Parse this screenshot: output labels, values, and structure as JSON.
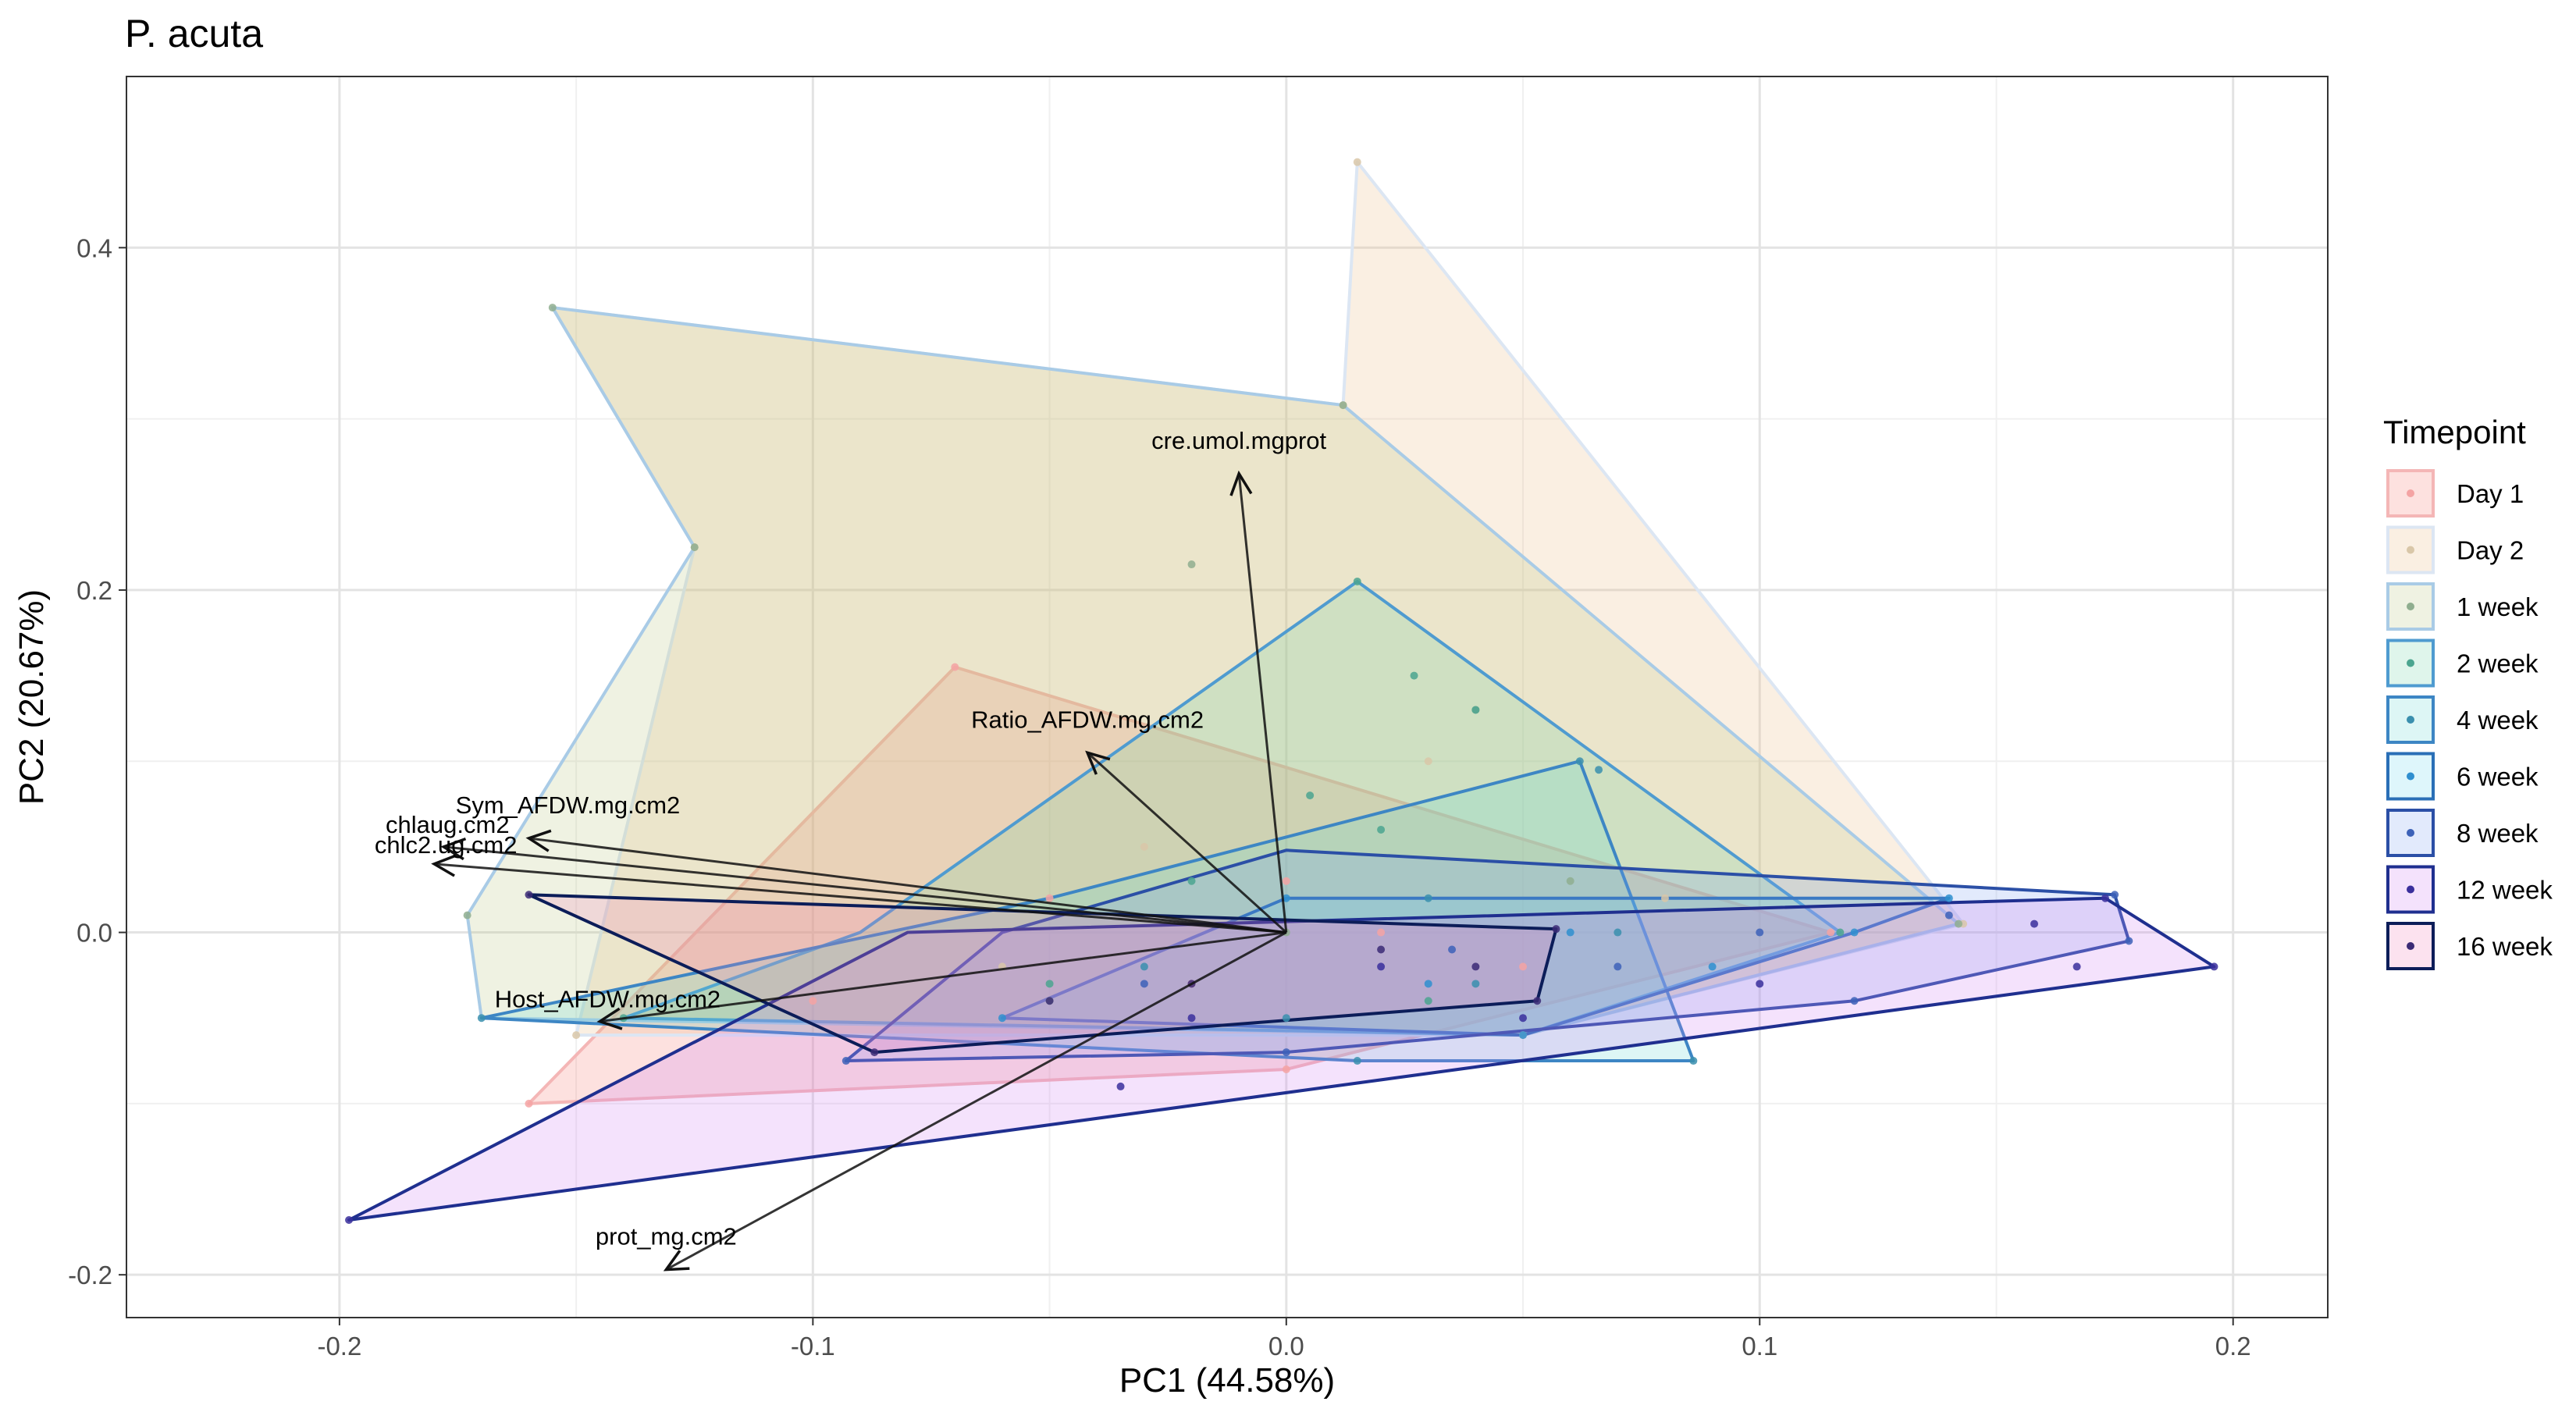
{
  "chart_data": {
    "type": "scatter",
    "title": "P. acuta",
    "xlabel": "PC1 (44.58%)",
    "ylabel": "PC2 (20.67%)",
    "xlim": [
      -0.245,
      0.22
    ],
    "ylim": [
      -0.225,
      0.5
    ],
    "x_ticks": [
      -0.2,
      -0.1,
      0.0,
      0.1,
      0.2
    ],
    "x_tick_labels": [
      "-0.2",
      "-0.1",
      "0.0",
      "0.1",
      "0.2"
    ],
    "y_ticks": [
      -0.2,
      0.0,
      0.2,
      0.4
    ],
    "y_tick_labels": [
      "-0.2",
      "0.0",
      "0.2",
      "0.4"
    ],
    "grid": true,
    "legend": {
      "title": "Timepoint",
      "position": "right",
      "entries": [
        "Day 1",
        "Day 2",
        "1 week",
        "2 week",
        "4 week",
        "6 week",
        "8 week",
        "12 week",
        "16 week"
      ]
    },
    "series": [
      {
        "name": "Day 1",
        "stroke": "#f4b6b6",
        "fill": "#f8766d",
        "point": "#f4a3a3",
        "hull": [
          [
            -0.07,
            0.155
          ],
          [
            0.115,
            0.0
          ],
          [
            0.0,
            -0.08
          ],
          [
            -0.16,
            -0.1
          ]
        ],
        "points": [
          [
            -0.07,
            0.155
          ],
          [
            0.115,
            0.0
          ],
          [
            0.0,
            -0.08
          ],
          [
            -0.16,
            -0.1
          ],
          [
            -0.05,
            0.02
          ],
          [
            -0.02,
            -0.03
          ],
          [
            0.02,
            0.0
          ],
          [
            0.05,
            -0.02
          ],
          [
            -0.1,
            -0.04
          ],
          [
            0.0,
            0.03
          ]
        ]
      },
      {
        "name": "Day 2",
        "stroke": "#dce6f3",
        "fill": "#e6b77c",
        "point": "#d9c7a8",
        "hull": [
          [
            0.015,
            0.45
          ],
          [
            0.143,
            0.005
          ],
          [
            0.05,
            -0.06
          ],
          [
            -0.15,
            -0.06
          ],
          [
            -0.125,
            0.225
          ],
          [
            -0.155,
            0.365
          ],
          [
            0.012,
            0.308
          ]
        ],
        "points": [
          [
            0.015,
            0.45
          ],
          [
            0.012,
            0.308
          ],
          [
            0.143,
            0.005
          ],
          [
            0.05,
            -0.06
          ],
          [
            -0.15,
            -0.06
          ],
          [
            -0.125,
            0.225
          ],
          [
            0.03,
            0.1
          ],
          [
            -0.03,
            0.05
          ],
          [
            0.08,
            0.02
          ],
          [
            -0.06,
            -0.02
          ]
        ]
      },
      {
        "name": "1 week",
        "stroke": "#a9cbe6",
        "fill": "#b6c57a",
        "point": "#8fae8f",
        "hull": [
          [
            -0.155,
            0.365
          ],
          [
            0.012,
            0.308
          ],
          [
            0.142,
            0.005
          ],
          [
            0.05,
            -0.06
          ],
          [
            -0.17,
            -0.05
          ],
          [
            -0.173,
            0.01
          ],
          [
            -0.125,
            0.225
          ]
        ],
        "points": [
          [
            -0.155,
            0.365
          ],
          [
            -0.125,
            0.225
          ],
          [
            -0.173,
            0.01
          ],
          [
            -0.02,
            0.215
          ],
          [
            0.04,
            0.13
          ],
          [
            0.012,
            0.308
          ],
          [
            0.142,
            0.005
          ],
          [
            0.0,
            0.0
          ],
          [
            -0.05,
            -0.04
          ],
          [
            0.06,
            0.03
          ]
        ]
      },
      {
        "name": "2 week",
        "stroke": "#4f9bd0",
        "fill": "#6fd3a2",
        "point": "#4ba58f",
        "hull": [
          [
            0.015,
            0.205
          ],
          [
            0.117,
            0.0
          ],
          [
            0.05,
            -0.06
          ],
          [
            -0.14,
            -0.05
          ],
          [
            -0.09,
            0.0
          ]
        ],
        "points": [
          [
            0.015,
            0.205
          ],
          [
            0.027,
            0.15
          ],
          [
            0.04,
            0.13
          ],
          [
            0.117,
            0.0
          ],
          [
            0.03,
            -0.04
          ],
          [
            -0.05,
            -0.03
          ],
          [
            -0.14,
            -0.05
          ],
          [
            0.005,
            0.08
          ],
          [
            0.02,
            0.06
          ],
          [
            -0.02,
            0.03
          ]
        ]
      },
      {
        "name": "4 week",
        "stroke": "#3d86c4",
        "fill": "#66d6d0",
        "point": "#3a8fae",
        "hull": [
          [
            0.062,
            0.1
          ],
          [
            0.086,
            -0.075
          ],
          [
            0.015,
            -0.075
          ],
          [
            -0.17,
            -0.05
          ],
          [
            -0.05,
            0.02
          ]
        ],
        "points": [
          [
            0.062,
            0.1
          ],
          [
            0.066,
            0.095
          ],
          [
            0.086,
            -0.075
          ],
          [
            0.015,
            -0.075
          ],
          [
            -0.17,
            -0.05
          ],
          [
            0.07,
            0.0
          ],
          [
            0.04,
            -0.03
          ],
          [
            -0.03,
            -0.02
          ],
          [
            0.0,
            -0.05
          ],
          [
            0.03,
            0.02
          ]
        ]
      },
      {
        "name": "6 week",
        "stroke": "#2a6fb7",
        "fill": "#6ad4ee",
        "point": "#2f8fcf",
        "hull": [
          [
            0.14,
            0.02
          ],
          [
            0.12,
            0.0
          ],
          [
            0.05,
            -0.06
          ],
          [
            -0.06,
            -0.05
          ],
          [
            0.0,
            0.02
          ]
        ],
        "points": [
          [
            0.14,
            0.02
          ],
          [
            0.12,
            0.0
          ],
          [
            0.05,
            -0.06
          ],
          [
            0.09,
            -0.02
          ],
          [
            0.06,
            0.0
          ],
          [
            -0.06,
            -0.05
          ],
          [
            0.03,
            -0.03
          ],
          [
            0.0,
            0.02
          ]
        ]
      },
      {
        "name": "8 week",
        "stroke": "#2b4fa6",
        "fill": "#7b9ef0",
        "point": "#3d62b8",
        "hull": [
          [
            0.175,
            0.022
          ],
          [
            0.178,
            -0.005
          ],
          [
            0.12,
            -0.04
          ],
          [
            0.0,
            -0.07
          ],
          [
            -0.093,
            -0.075
          ],
          [
            -0.06,
            0.0
          ],
          [
            0.0,
            0.048
          ]
        ],
        "points": [
          [
            0.175,
            0.022
          ],
          [
            0.178,
            -0.005
          ],
          [
            0.12,
            -0.04
          ],
          [
            0.0,
            -0.07
          ],
          [
            -0.093,
            -0.075
          ],
          [
            0.07,
            -0.02
          ],
          [
            0.035,
            -0.01
          ],
          [
            -0.03,
            -0.03
          ],
          [
            0.1,
            0.0
          ],
          [
            0.14,
            0.01
          ]
        ]
      },
      {
        "name": "12 week",
        "stroke": "#1f2f8f",
        "fill": "#cf7cf2",
        "point": "#3a2f9c",
        "hull": [
          [
            0.196,
            -0.02
          ],
          [
            0.173,
            0.02
          ],
          [
            -0.08,
            0.0
          ],
          [
            -0.198,
            -0.168
          ]
        ],
        "points": [
          [
            0.196,
            -0.02
          ],
          [
            0.173,
            0.02
          ],
          [
            0.167,
            -0.02
          ],
          [
            0.158,
            0.005
          ],
          [
            -0.198,
            -0.168
          ],
          [
            -0.035,
            -0.09
          ],
          [
            0.1,
            -0.03
          ],
          [
            0.05,
            -0.05
          ],
          [
            -0.02,
            -0.05
          ],
          [
            0.02,
            -0.02
          ]
        ]
      },
      {
        "name": "16 week",
        "stroke": "#0c1d59",
        "fill": "#f07ab8",
        "point": "#3b2a75",
        "hull": [
          [
            -0.16,
            0.022
          ],
          [
            0.057,
            0.002
          ],
          [
            0.053,
            -0.04
          ],
          [
            -0.087,
            -0.07
          ]
        ],
        "points": [
          [
            -0.16,
            0.022
          ],
          [
            0.057,
            0.002
          ],
          [
            0.053,
            -0.04
          ],
          [
            -0.087,
            -0.07
          ],
          [
            0.02,
            -0.01
          ],
          [
            -0.02,
            -0.03
          ],
          [
            0.04,
            -0.02
          ],
          [
            -0.05,
            -0.04
          ]
        ]
      }
    ],
    "loadings": [
      {
        "name": "cre.umol.mgprot",
        "x": -0.01,
        "y": 0.268
      },
      {
        "name": "Ratio_AFDW.mg.cm2",
        "x": -0.042,
        "y": 0.105
      },
      {
        "name": "Sym_AFDW.mg.cm2",
        "x": -0.16,
        "y": 0.055
      },
      {
        "name": "chlaug.cm2",
        "x": -0.178,
        "y": 0.05
      },
      {
        "name": "chlc2.ug.cm2",
        "x": -0.18,
        "y": 0.04
      },
      {
        "name": "Host_AFDW.mg.cm2",
        "x": -0.145,
        "y": -0.052
      },
      {
        "name": "prot_mg.cm2",
        "x": -0.131,
        "y": -0.197
      }
    ]
  }
}
